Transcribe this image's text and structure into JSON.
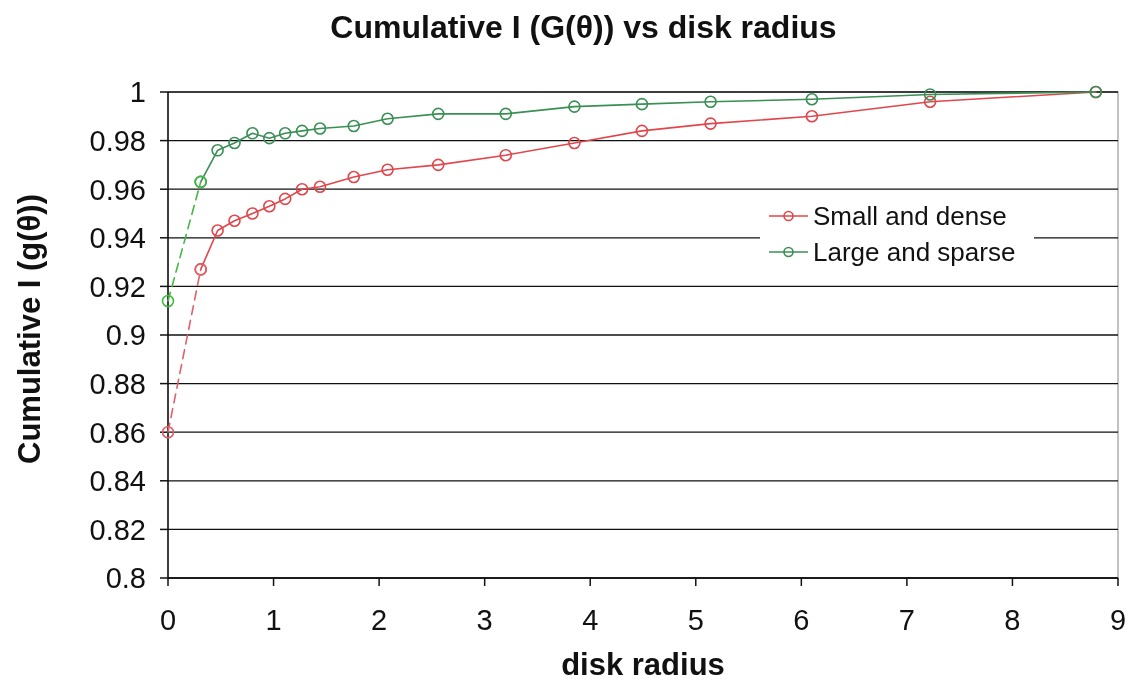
{
  "chart_data": {
    "type": "line",
    "title": "Cumulative I (G(θ)) vs disk radius",
    "xlabel": "disk radius",
    "ylabel": "Cumulative I (g(θ))",
    "xlim": [
      0,
      9
    ],
    "xticks": [
      0,
      1,
      2,
      3,
      4,
      5,
      6,
      7,
      8,
      9
    ],
    "ylim": [
      0.8,
      1
    ],
    "yticks": [
      0.8,
      0.82,
      0.84,
      0.86,
      0.88,
      0.9,
      0.92,
      0.94,
      0.96,
      0.98,
      1
    ],
    "grid": "y",
    "legend": "top right",
    "marker": "circle",
    "series": [
      {
        "name": "Small and dense",
        "color": "#e0474c",
        "line_style": "solid",
        "x": [
          0.31,
          0.47,
          0.63,
          0.8,
          0.96,
          1.11,
          1.27,
          1.44,
          1.76,
          2.08,
          2.56,
          3.2,
          3.85,
          4.49,
          5.14,
          6.1,
          7.22,
          8.79
        ],
        "values": [
          0.927,
          0.943,
          0.947,
          0.95,
          0.953,
          0.956,
          0.96,
          0.961,
          0.965,
          0.968,
          0.97,
          0.974,
          0.979,
          0.984,
          0.987,
          0.99,
          0.996,
          1.0
        ]
      },
      {
        "name": "Large and sparse",
        "color": "#3a8f55",
        "line_style": "solid",
        "x": [
          0.31,
          0.47,
          0.63,
          0.8,
          0.96,
          1.11,
          1.27,
          1.44,
          1.76,
          2.08,
          2.56,
          3.2,
          3.85,
          4.49,
          5.14,
          6.1,
          7.22,
          8.79
        ],
        "values": [
          0.963,
          0.976,
          0.979,
          0.983,
          0.981,
          0.983,
          0.984,
          0.985,
          0.986,
          0.989,
          0.991,
          0.991,
          0.994,
          0.995,
          0.996,
          0.997,
          0.999,
          1.0
        ]
      },
      {
        "color": "#e0606a",
        "line_style": "dashed",
        "x": [
          0,
          0.31
        ],
        "values": [
          0.86,
          0.927
        ]
      },
      {
        "color": "#44b844",
        "line_style": "dashed",
        "x": [
          0,
          0.31
        ],
        "values": [
          0.914,
          0.963
        ]
      }
    ]
  }
}
